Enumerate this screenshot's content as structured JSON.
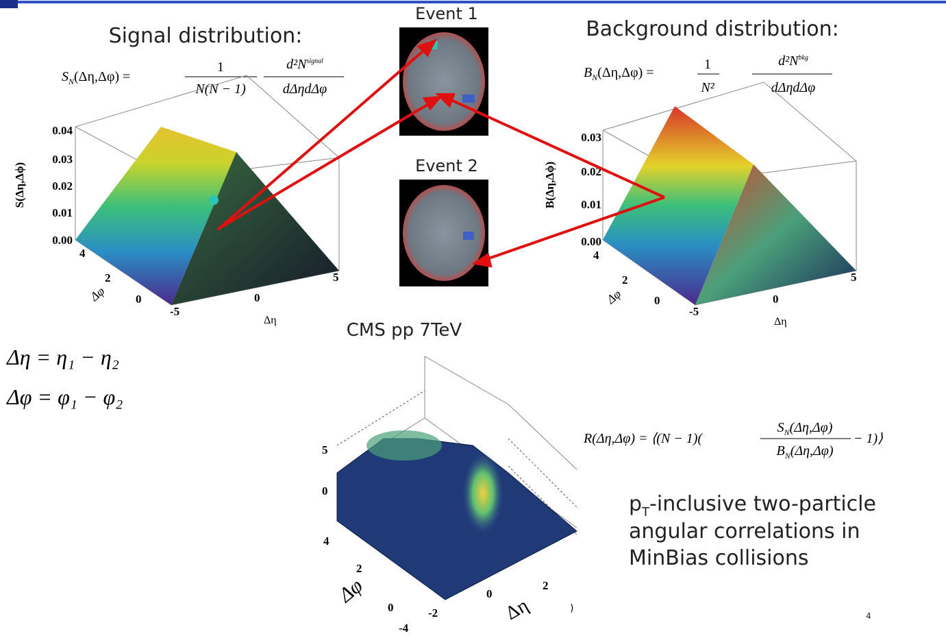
{
  "signal": {
    "title": "Signal distribution:",
    "formula": {
      "lhs": "S",
      "lhs_sub": "N",
      "lhs_args": "(Δη,Δφ) =",
      "num1": "1",
      "den1": "N(N − 1)",
      "num2": "d²N",
      "num2_sup": "signal",
      "den2": "dΔηdΔφ"
    },
    "z_label": "S(Δη,Δϕ)",
    "z_ticks": [
      "0.04",
      "0.03",
      "0.02",
      "0.01",
      "0.00"
    ],
    "phi_ticks": [
      "4",
      "2",
      "0"
    ],
    "phi_label": "Δφ",
    "eta_ticks": [
      "-5",
      "0",
      "5"
    ],
    "eta_label": "Δη"
  },
  "events": [
    "Event 1",
    "Event 2"
  ],
  "background": {
    "title": "Background distribution:",
    "formula": {
      "lhs": "B",
      "lhs_sub": "N",
      "lhs_args": "(Δη,Δφ) =",
      "num1": "1",
      "den1": "N²",
      "num2": "d²N",
      "num2_sup": "bkg",
      "den2": "dΔηdΔφ"
    },
    "z_label": "B(Δη,Δϕ)",
    "z_ticks": [
      "0.03",
      "0.02",
      "0.01",
      "0.00"
    ],
    "phi_ticks": [
      "4",
      "2",
      "0"
    ],
    "phi_label": "Δφ",
    "eta_ticks": [
      "-5",
      "0",
      "5"
    ],
    "eta_label": "Δη"
  },
  "definitions": [
    "Δη = η₁ − η₂",
    "Δφ = φ₁ − φ₂"
  ],
  "cms": {
    "title": "CMS pp 7TeV",
    "z_ticks": [
      "5",
      "0"
    ],
    "phi_ticks": [
      "4",
      "2",
      "0"
    ],
    "phi_label": "Δφ",
    "eta_ticks": [
      "-4",
      "-2",
      "0",
      "2"
    ],
    "eta_label": "Δη",
    "stray": ")"
  },
  "ratio_formula": {
    "head": "R(Δη,Δφ) = ⟨(N − 1)(",
    "num": "S",
    "num_sub": "N",
    "num_args": "(Δη,Δφ)",
    "den": "B",
    "den_sub": "N",
    "den_args": "(Δη,Δφ)",
    "tail": "− 1)⟩"
  },
  "description": {
    "p": "p",
    "sub": "T",
    "rest": "-inclusive two-particle",
    "line2": "angular correlations in",
    "line3": "MinBias collisions"
  },
  "page_number": "4"
}
